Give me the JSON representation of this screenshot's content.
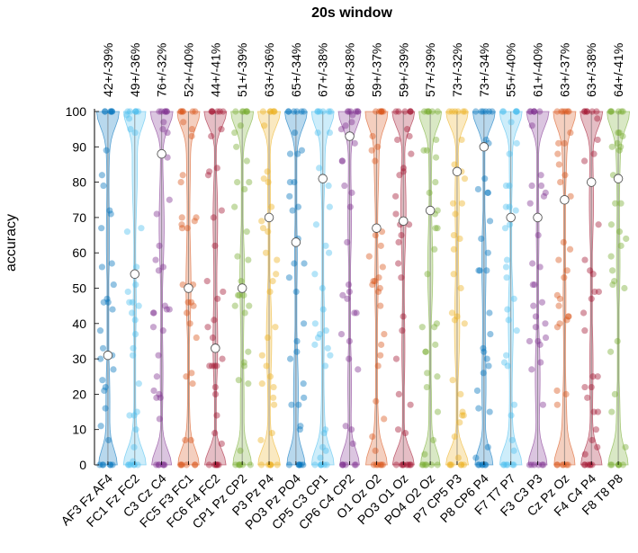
{
  "chart_data": {
    "type": "violin",
    "title": "20s window",
    "xlabel": "",
    "ylabel": "accuracy",
    "ylim": [
      0,
      100
    ],
    "yticks": [
      0,
      10,
      20,
      30,
      40,
      50,
      60,
      70,
      80,
      90,
      100
    ],
    "grid": false,
    "categories": [
      "AF3 Fz AF4",
      "FC1 Fz FC2",
      "C3 Cz C4",
      "FC5 F3 FC1",
      "FC6 F4 FC2",
      "CP1 Pz CP2",
      "P3 Pz P4",
      "PO3 Pz PO4",
      "CP5 C3 CP1",
      "CP6 C4 CP2",
      "O1 Oz O2",
      "PO3 O1 Oz",
      "PO4 O2 Oz",
      "P7 CP5 P3",
      "P8 CP6 P4",
      "F7 T7 P7",
      "F3 C3 P3",
      "Cz Pz Oz",
      "F4 C4 P4",
      "F8 T8 P8"
    ],
    "annotations": [
      "42+/-39%",
      "49+/-36%",
      "76+/-32%",
      "52+/-40%",
      "44+/-41%",
      "51+/-39%",
      "63+/-36%",
      "65+/-34%",
      "67+/-38%",
      "68+/-38%",
      "59+/-37%",
      "59+/-39%",
      "57+/-39%",
      "73+/-32%",
      "73+/-34%",
      "55+/-40%",
      "61+/-40%",
      "63+/-37%",
      "63+/-38%",
      "64+/-41%"
    ],
    "medians": [
      31,
      54,
      88,
      50,
      33,
      50,
      70,
      63,
      81,
      93,
      67,
      69,
      72,
      83,
      90,
      70,
      70,
      75,
      80,
      81
    ],
    "colors": [
      "#0072BD",
      "#4DBEEE",
      "#7E2F8E",
      "#D95319",
      "#A2142F",
      "#77AC30",
      "#EDB120",
      "#0072BD",
      "#4DBEEE",
      "#7E2F8E",
      "#D95319",
      "#A2142F",
      "#77AC30",
      "#EDB120",
      "#0072BD",
      "#4DBEEE",
      "#7E2F8E",
      "#D95319",
      "#A2142F",
      "#77AC30"
    ]
  }
}
